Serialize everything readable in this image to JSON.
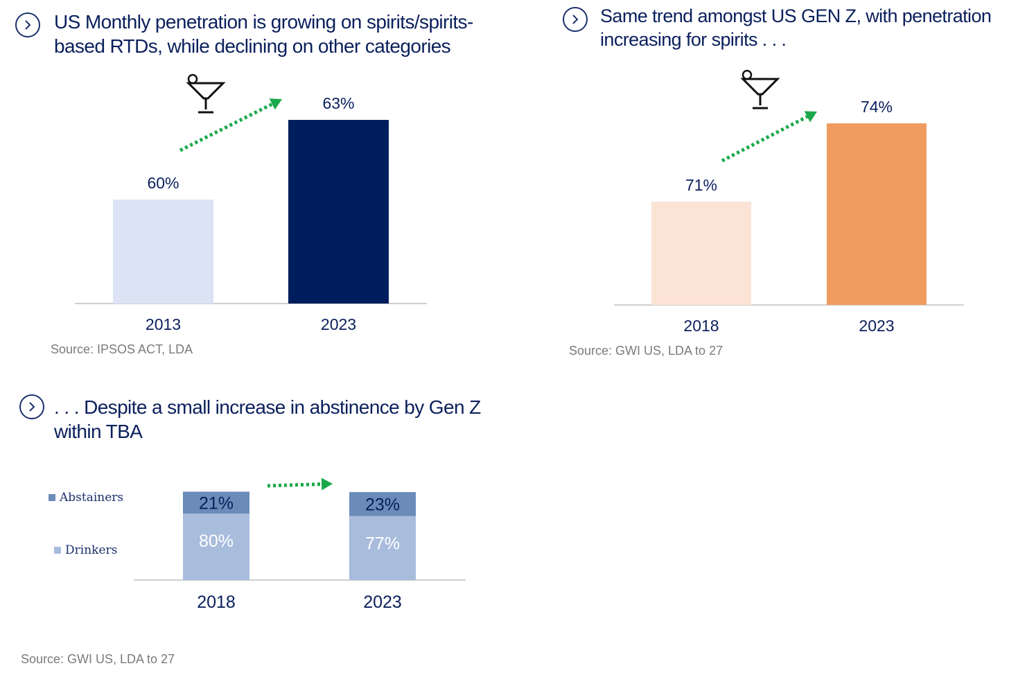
{
  "colors": {
    "navy": "#0a1f5c",
    "light_blue": "#dbe3f4",
    "dark_navy_bar": "#001e5e",
    "light_peach": "#fbe3d6",
    "orange": "#f09c61",
    "abstainers": "#6b8bb8",
    "drinkers": "#a8bcdc",
    "green_arrow": "#1aa84a",
    "axis": "#d0d0d0",
    "source_grey": "#7a7a7a"
  },
  "icons": [
    "chevron-right-icon",
    "cocktail-glass-icon",
    "dotted-arrow-icon"
  ],
  "panels": {
    "p1": {
      "title": "US Monthly penetration is growing on spirits/spirits-based RTDs, while declining on other categories",
      "source": "Source: IPSOS ACT, LDA"
    },
    "p2": {
      "title": "Same trend amongst US GEN Z, with penetration increasing for spirits . . .",
      "source": "Source: GWI US, LDA to 27"
    },
    "p3": {
      "title": ". . . Despite a small increase in abstinence by Gen Z within TBA",
      "source": "Source: GWI US, LDA to 27",
      "legend": {
        "abstainers": "Abstainers",
        "drinkers": "Drinkers"
      }
    }
  },
  "chart_data": [
    {
      "type": "bar",
      "title": "US Monthly penetration is growing on spirits/spirits-based RTDs, while declining on other categories",
      "categories": [
        "2013",
        "2023"
      ],
      "values": [
        60,
        63
      ],
      "labels": [
        "60%",
        "63%"
      ],
      "colors": [
        "#dbe3f4",
        "#001e5e"
      ],
      "unit": "%"
    },
    {
      "type": "bar",
      "title": "Same trend amongst US GEN Z, with penetration increasing for spirits . . .",
      "categories": [
        "2018",
        "2023"
      ],
      "values": [
        71,
        74
      ],
      "labels": [
        "71%",
        "74%"
      ],
      "colors": [
        "#fbe3d6",
        "#f09c61"
      ],
      "unit": "%"
    },
    {
      "type": "bar",
      "stacked": true,
      "title": ". . . Despite a small increase in abstinence by Gen Z within TBA",
      "categories": [
        "2018",
        "2023"
      ],
      "series": [
        {
          "name": "Drinkers",
          "values": [
            80,
            77
          ],
          "labels": [
            "80%",
            "77%"
          ],
          "color": "#a8bcdc"
        },
        {
          "name": "Abstainers",
          "values": [
            21,
            23
          ],
          "labels": [
            "21%",
            "23%"
          ],
          "color": "#6b8bb8"
        }
      ],
      "legend_position": "left",
      "unit": "%"
    }
  ]
}
